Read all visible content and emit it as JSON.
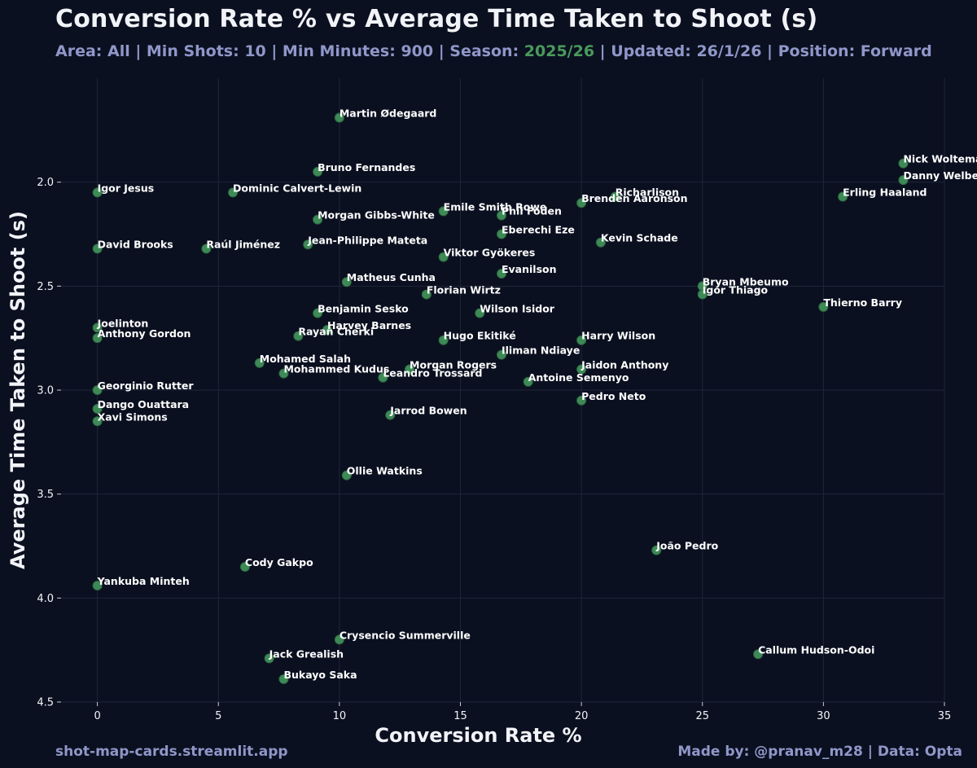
{
  "header": {
    "title": "Conversion Rate % vs Average Time Taken to Shoot (s)",
    "subtitle_pre": "Area: All | Min Shots: 10 | Min Minutes: 900 | Season: ",
    "subtitle_season": "2025/26",
    "subtitle_post": " | Updated: 26/1/26 | Position: Forward"
  },
  "footer": {
    "left": "shot-map-cards.streamlit.app",
    "right": "Made by: @pranav_m28 | Data: Opta"
  },
  "colors": {
    "background": "#0b1020",
    "point": "#3e8a57",
    "season_accent": "#4a9a5c",
    "subtitle": "#8f97c9",
    "grid": "#1f2638"
  },
  "chart_data": {
    "type": "scatter",
    "title": "Conversion Rate % vs Average Time Taken to Shoot (s)",
    "xlabel": "Conversion Rate %",
    "ylabel": "Average Time Taken to Shoot (s)",
    "xlim": [
      -1.5,
      35
    ],
    "ylim": [
      4.5,
      1.5
    ],
    "y_inverted": true,
    "grid": true,
    "xticks": [
      0,
      5,
      10,
      15,
      20,
      25,
      30,
      35
    ],
    "xtick_labels": [
      "0",
      "5",
      "10",
      "15",
      "20",
      "25",
      "30",
      "35"
    ],
    "yticks": [
      2.0,
      2.5,
      3.0,
      3.5,
      4.0,
      4.5
    ],
    "ytick_labels": [
      "2.0",
      "2.5",
      "3.0",
      "3.5",
      "4.0",
      "4.5"
    ],
    "points": [
      {
        "name": "Martin Ødegaard",
        "x": 10.0,
        "y": 1.69
      },
      {
        "name": "Nick Woltemade",
        "x": 33.3,
        "y": 1.91
      },
      {
        "name": "Danny Welbeck",
        "x": 33.3,
        "y": 1.99
      },
      {
        "name": "Bruno Fernandes",
        "x": 9.1,
        "y": 1.95
      },
      {
        "name": "Igor Jesus",
        "x": 0.0,
        "y": 2.05
      },
      {
        "name": "Dominic Calvert-Lewin",
        "x": 5.6,
        "y": 2.05
      },
      {
        "name": "Richarlison",
        "x": 21.4,
        "y": 2.07
      },
      {
        "name": "Brenden Aaronson",
        "x": 20.0,
        "y": 2.1
      },
      {
        "name": "Erling Haaland",
        "x": 30.8,
        "y": 2.07
      },
      {
        "name": "Emile Smith Rowe",
        "x": 14.3,
        "y": 2.14
      },
      {
        "name": "Phil Foden",
        "x": 16.7,
        "y": 2.16
      },
      {
        "name": "Morgan Gibbs-White",
        "x": 9.1,
        "y": 2.18
      },
      {
        "name": "Eberechi Eze",
        "x": 16.7,
        "y": 2.25
      },
      {
        "name": "Kevin Schade",
        "x": 20.8,
        "y": 2.29
      },
      {
        "name": "David Brooks",
        "x": 0.0,
        "y": 2.32
      },
      {
        "name": "Raúl Jiménez",
        "x": 4.5,
        "y": 2.32
      },
      {
        "name": "Jean-Philippe Mateta",
        "x": 8.7,
        "y": 2.3
      },
      {
        "name": "Viktor Gyökeres",
        "x": 14.3,
        "y": 2.36
      },
      {
        "name": "Evanilson",
        "x": 16.7,
        "y": 2.44
      },
      {
        "name": "Matheus Cunha",
        "x": 10.3,
        "y": 2.48
      },
      {
        "name": "Bryan Mbeumo",
        "x": 25.0,
        "y": 2.5
      },
      {
        "name": "Igor Thiago",
        "x": 25.0,
        "y": 2.54
      },
      {
        "name": "Florian Wirtz",
        "x": 13.6,
        "y": 2.54
      },
      {
        "name": "Thierno Barry",
        "x": 30.0,
        "y": 2.6
      },
      {
        "name": "Benjamin Sesko",
        "x": 9.1,
        "y": 2.63
      },
      {
        "name": "Wilson Isidor",
        "x": 15.8,
        "y": 2.63
      },
      {
        "name": "Joelinton",
        "x": 0.0,
        "y": 2.7
      },
      {
        "name": "Harvey Barnes",
        "x": 9.5,
        "y": 2.71
      },
      {
        "name": "Anthony Gordon",
        "x": 0.0,
        "y": 2.75
      },
      {
        "name": "Rayan Cherki",
        "x": 8.3,
        "y": 2.74
      },
      {
        "name": "Hugo Ekitiké",
        "x": 14.3,
        "y": 2.76
      },
      {
        "name": "Harry Wilson",
        "x": 20.0,
        "y": 2.76
      },
      {
        "name": "Iliman Ndiaye",
        "x": 16.7,
        "y": 2.83
      },
      {
        "name": "Mohamed Salah",
        "x": 6.7,
        "y": 2.87
      },
      {
        "name": "Mohammed Kudus",
        "x": 7.7,
        "y": 2.92
      },
      {
        "name": "Morgan Rogers",
        "x": 12.9,
        "y": 2.9
      },
      {
        "name": "Leandro Trossard",
        "x": 11.8,
        "y": 2.94
      },
      {
        "name": "Jaidon Anthony",
        "x": 20.0,
        "y": 2.9
      },
      {
        "name": "Antoine Semenyo",
        "x": 17.8,
        "y": 2.96
      },
      {
        "name": "Georginio Rutter",
        "x": 0.0,
        "y": 3.0
      },
      {
        "name": "Pedro Neto",
        "x": 20.0,
        "y": 3.05
      },
      {
        "name": "Dango Ouattara",
        "x": 0.0,
        "y": 3.09
      },
      {
        "name": "Jarrod Bowen",
        "x": 12.1,
        "y": 3.12
      },
      {
        "name": "Xavi Simons",
        "x": 0.0,
        "y": 3.15
      },
      {
        "name": "Ollie Watkins",
        "x": 10.3,
        "y": 3.41
      },
      {
        "name": "João Pedro",
        "x": 23.1,
        "y": 3.77
      },
      {
        "name": "Cody Gakpo",
        "x": 6.1,
        "y": 3.85
      },
      {
        "name": "Yankuba Minteh",
        "x": 0.0,
        "y": 3.94
      },
      {
        "name": "Crysencio Summerville",
        "x": 10.0,
        "y": 4.2
      },
      {
        "name": "Jack Grealish",
        "x": 7.1,
        "y": 4.29
      },
      {
        "name": "Callum Hudson-Odoi",
        "x": 27.3,
        "y": 4.27
      },
      {
        "name": "Bukayo Saka",
        "x": 7.7,
        "y": 4.39
      }
    ]
  }
}
